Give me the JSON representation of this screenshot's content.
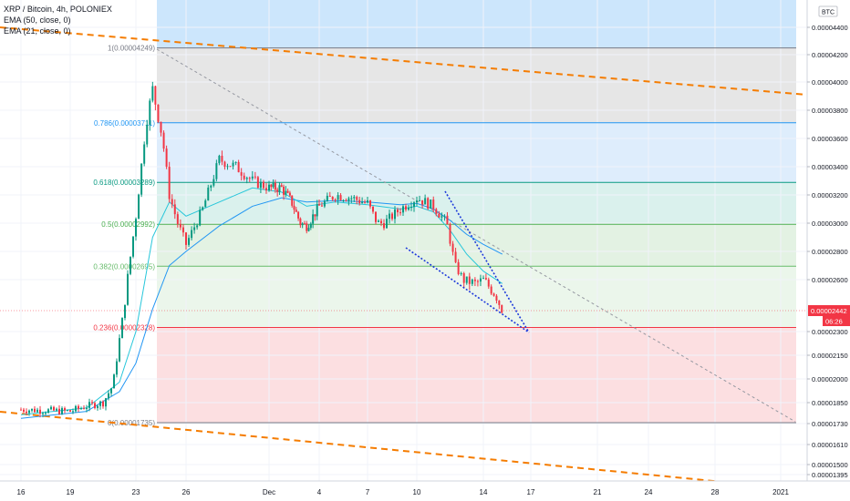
{
  "header": {
    "title": "XRP / Bitcoin, 4h, POLONIEX",
    "indicators": [
      "EMA (50, close, 0)",
      "EMA (21, close, 0)"
    ],
    "currency": "BTC"
  },
  "chart_data": {
    "type": "candlestick",
    "symbol": "XRP / Bitcoin",
    "interval": "4h",
    "exchange": "POLONIEX",
    "x_ticks": [
      "16",
      "19",
      "23",
      "26",
      "Dec",
      "4",
      "7",
      "10",
      "14",
      "17",
      "21",
      "24",
      "28",
      "2021"
    ],
    "y_ticks": [
      "0.00004400",
      "0.00004200",
      "0.00004000",
      "0.00003800",
      "0.00003600",
      "0.00003400",
      "0.00003200",
      "0.00003000",
      "0.00002800",
      "0.00002600",
      "0.00002442",
      "0.00002300",
      "0.00002150",
      "0.00002000",
      "0.00001850",
      "0.00001730",
      "0.00001610",
      "0.00001500",
      "0.00001395"
    ],
    "y_labels_plain": [
      "0.00004400",
      "0.00004200",
      "0.00004000",
      "0.00003800",
      "0.00003600",
      "0.00003400",
      "0.00003200",
      "0.00003000",
      "0.00002800",
      "0.00002600",
      "0.00002300",
      "0.00002150",
      "0.00002000",
      "0.00001850",
      "0.00001730",
      "0.00001610",
      "0.00001500",
      "0.00001395"
    ],
    "last_price": "0.00002442",
    "countdown": "06:26",
    "fib_levels": [
      {
        "label": "1(0.00004249)",
        "price": 4.249e-05,
        "color": "#787b86"
      },
      {
        "label": "0.786(0.00003711)",
        "price": 3.711e-05,
        "color": "#2196f3"
      },
      {
        "label": "0.618(0.00003289)",
        "price": 3.289e-05,
        "color": "#089981"
      },
      {
        "label": "0.5(0.00002992)",
        "price": 2.992e-05,
        "color": "#4caf50"
      },
      {
        "label": "0.382(0.00002695)",
        "price": 2.695e-05,
        "color": "#66bb6a"
      },
      {
        "label": "0.236(0.00002328)",
        "price": 2.328e-05,
        "color": "#f23645"
      },
      {
        "label": "0(0.00001735)",
        "price": 1.735e-05,
        "color": "#787b86"
      }
    ],
    "candle_path": [
      [
        16,
        1.81e-05
      ],
      [
        19,
        1.8e-05
      ],
      [
        20,
        1.83e-05
      ],
      [
        21,
        1.85e-05
      ],
      [
        21.6,
        1.96e-05
      ],
      [
        22,
        2.25e-05
      ],
      [
        22.5,
        2.62e-05
      ],
      [
        23,
        3.05e-05
      ],
      [
        23.6,
        3.7e-05
      ],
      [
        24,
        3.95e-05
      ],
      [
        24.6,
        3.6e-05
      ],
      [
        25,
        3.2e-05
      ],
      [
        25.5,
        3e-05
      ],
      [
        26,
        2.85e-05
      ],
      [
        27,
        3.1e-05
      ],
      [
        28,
        3.45e-05
      ],
      [
        29,
        3.4e-05
      ],
      [
        30,
        3.3e-05
      ],
      [
        31,
        3.25e-05
      ],
      [
        32,
        3.25e-05
      ],
      [
        32.8,
        3.15e-05
      ],
      [
        33.5,
        3e-05
      ],
      [
        34,
        2.98e-05
      ],
      [
        35,
        3.12e-05
      ],
      [
        36,
        3.2e-05
      ],
      [
        37,
        3.18e-05
      ],
      [
        38,
        3.14e-05
      ],
      [
        38.6,
        3e-05
      ],
      [
        39,
        3e-05
      ],
      [
        40,
        3.1e-05
      ],
      [
        41,
        3.18e-05
      ],
      [
        42,
        3.12e-05
      ],
      [
        42.8,
        3e-05
      ],
      [
        43.3,
        2.7e-05
      ],
      [
        43.8,
        2.6e-05
      ],
      [
        44.5,
        2.58e-05
      ],
      [
        45,
        2.6e-05
      ],
      [
        45.8,
        2.52e-05
      ],
      [
        46.2,
        2.44e-05
      ]
    ],
    "ema21": [
      [
        16,
        1.78e-05
      ],
      [
        20,
        1.82e-05
      ],
      [
        22,
        1.98e-05
      ],
      [
        23,
        2.3e-05
      ],
      [
        24,
        2.9e-05
      ],
      [
        25,
        3.15e-05
      ],
      [
        26,
        3.05e-05
      ],
      [
        28,
        3.15e-05
      ],
      [
        30,
        3.25e-05
      ],
      [
        32,
        3.22e-05
      ],
      [
        34,
        3.12e-05
      ],
      [
        36,
        3.15e-05
      ],
      [
        38,
        3.13e-05
      ],
      [
        40,
        3.1e-05
      ],
      [
        41,
        3.12e-05
      ],
      [
        42,
        3.08e-05
      ],
      [
        43,
        2.95e-05
      ],
      [
        44,
        2.78e-05
      ],
      [
        45,
        2.66e-05
      ],
      [
        46.2,
        2.58e-05
      ]
    ],
    "ema50": [
      [
        16,
        1.76e-05
      ],
      [
        20,
        1.8e-05
      ],
      [
        22,
        1.92e-05
      ],
      [
        23,
        2.1e-05
      ],
      [
        24,
        2.45e-05
      ],
      [
        25,
        2.7e-05
      ],
      [
        26,
        2.8e-05
      ],
      [
        28,
        2.98e-05
      ],
      [
        30,
        3.12e-05
      ],
      [
        32,
        3.18e-05
      ],
      [
        34,
        3.15e-05
      ],
      [
        36,
        3.16e-05
      ],
      [
        38,
        3.15e-05
      ],
      [
        40,
        3.13e-05
      ],
      [
        41,
        3.14e-05
      ],
      [
        42,
        3.1e-05
      ],
      [
        43,
        3.02e-05
      ],
      [
        44,
        2.92e-05
      ],
      [
        45,
        2.85e-05
      ],
      [
        46.2,
        2.78e-05
      ]
    ]
  }
}
